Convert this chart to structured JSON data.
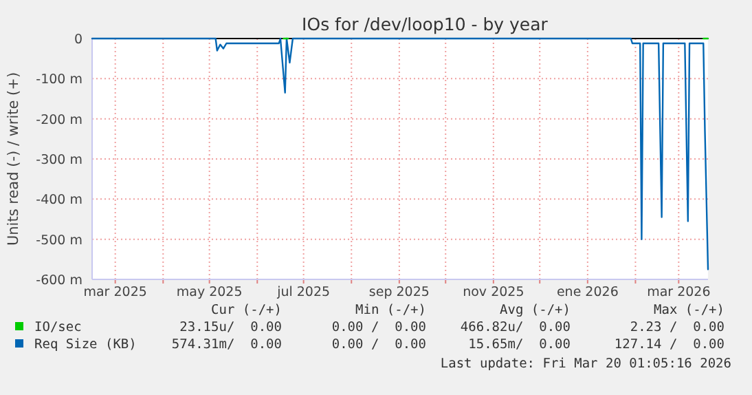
{
  "chart_data": {
    "type": "line",
    "title": "IOs for /dev/loop10 - by year",
    "ylabel": "Units read (-) / write (+)",
    "xlim": [
      "2025-02-14",
      "2026-03-20"
    ],
    "xticks": [
      {
        "value": "2025-03-01",
        "label": "mar 2025"
      },
      {
        "value": "2025-04-01",
        "label": null
      },
      {
        "value": "2025-05-01",
        "label": "may 2025"
      },
      {
        "value": "2025-06-01",
        "label": null
      },
      {
        "value": "2025-07-01",
        "label": "jul 2025"
      },
      {
        "value": "2025-08-01",
        "label": null
      },
      {
        "value": "2025-09-01",
        "label": "sep 2025"
      },
      {
        "value": "2025-10-01",
        "label": null
      },
      {
        "value": "2025-11-01",
        "label": "nov 2025"
      },
      {
        "value": "2025-12-01",
        "label": null
      },
      {
        "value": "2026-01-01",
        "label": "ene 2026"
      },
      {
        "value": "2026-02-01",
        "label": null
      },
      {
        "value": "2026-03-01",
        "label": "mar 2026"
      }
    ],
    "ylim": [
      -600,
      0
    ],
    "yticks": [
      {
        "value": -600,
        "label": "-600 m"
      },
      {
        "value": -500,
        "label": "-500 m"
      },
      {
        "value": -400,
        "label": "-400 m"
      },
      {
        "value": -300,
        "label": "-300 m"
      },
      {
        "value": -200,
        "label": "-200 m"
      },
      {
        "value": -100,
        "label": "-100 m"
      },
      {
        "value": 0,
        "label": "0"
      }
    ],
    "grid": true,
    "legend": "bottom",
    "ref_lines": [
      {
        "axis": "y",
        "value": 0,
        "color": "#000000"
      }
    ],
    "series": [
      {
        "name": "IO/sec",
        "color": "#00cc00",
        "x": [
          "2025-06-18",
          "2025-06-21",
          "2025-06-22",
          "2026-03-17",
          "2026-03-20"
        ],
        "values": [
          0,
          0,
          null,
          0,
          0
        ]
      },
      {
        "name": "Req Size (KB)",
        "color": "#0066b3",
        "x": [
          "2025-02-14",
          "2025-05-05",
          "2025-05-06",
          "2025-05-08",
          "2025-05-10",
          "2025-05-12",
          "2025-06-15",
          "2025-06-16",
          "2025-06-19",
          "2025-06-20",
          "2025-06-22",
          "2025-06-24",
          "2026-01-29",
          "2026-01-30",
          "2026-02-04",
          "2026-02-05",
          "2026-02-06",
          "2026-02-16",
          "2026-02-18",
          "2026-02-19",
          "2026-03-05",
          "2026-03-07",
          "2026-03-08",
          "2026-03-17",
          "2026-03-18",
          "2026-03-20"
        ],
        "values": [
          0,
          0,
          -30,
          -15,
          -25,
          -12,
          -12,
          0,
          -135,
          0,
          -60,
          0,
          0,
          -12,
          -12,
          -500,
          -12,
          -12,
          -445,
          -12,
          -12,
          -455,
          -12,
          -12,
          -230,
          -575
        ]
      }
    ],
    "annotations": [
      "Cur (-/+)",
      "Min (-/+)",
      "Avg (-/+)",
      "Max (-/+)",
      "23.15u/  0.00",
      "0.00 /  0.00",
      "466.82u/  0.00",
      "2.23 /  0.00",
      "574.31m/  0.00",
      "0.00 /  0.00",
      "15.65m/  0.00",
      "127.14 /  0.00",
      "Last update: Fri Mar 20 01:05:16 2026"
    ]
  }
}
